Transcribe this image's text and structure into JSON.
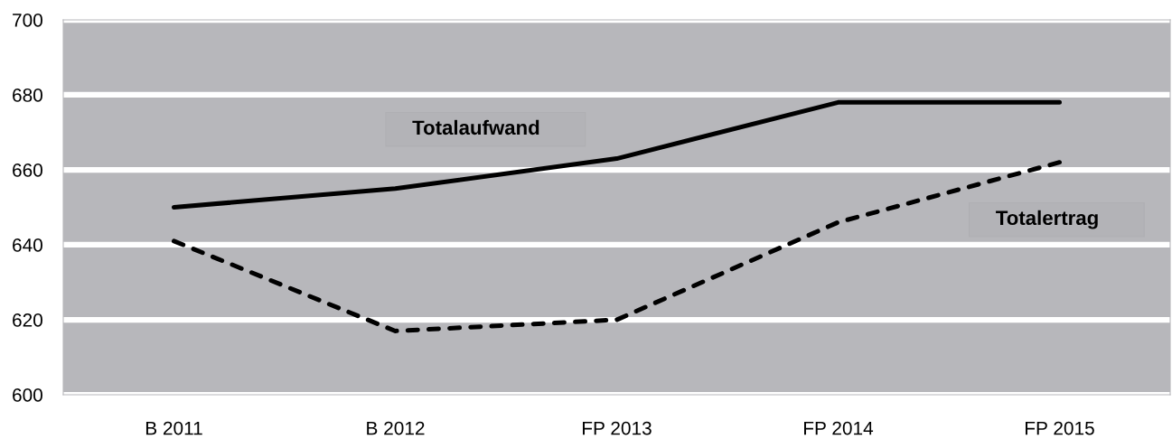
{
  "chart_data": {
    "type": "line",
    "categories": [
      "B 2011",
      "B 2012",
      "FP 2013",
      "FP 2014",
      "FP 2015"
    ],
    "series": [
      {
        "name": "Totalaufwand",
        "color": "#000000",
        "line_style": "solid",
        "values": [
          650,
          655,
          663,
          678,
          678
        ]
      },
      {
        "name": "Totalertrag",
        "color": "#000000",
        "line_style": "dashed",
        "values": [
          641,
          617,
          620,
          646,
          662
        ]
      }
    ],
    "ylim": [
      600,
      700
    ],
    "yticks": [
      600,
      620,
      640,
      660,
      680,
      700
    ],
    "grid": "y"
  }
}
